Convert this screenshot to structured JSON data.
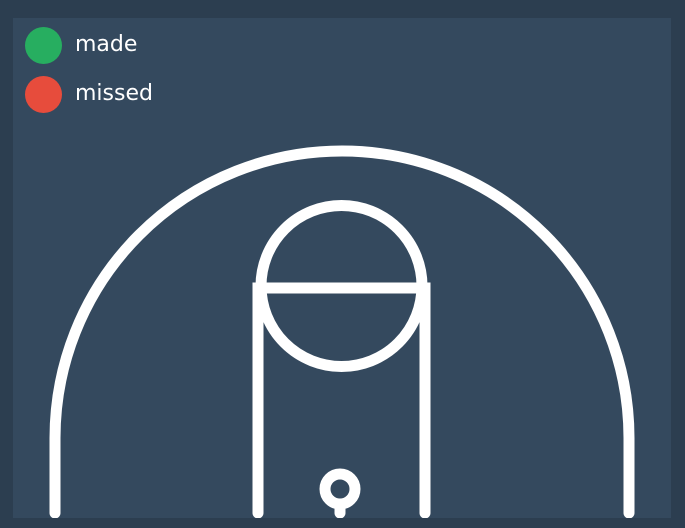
{
  "legend": {
    "items": [
      {
        "label": "made",
        "color": "#27ae60"
      },
      {
        "label": "missed",
        "color": "#e74c3c"
      }
    ]
  },
  "court": {
    "background": "#34495e",
    "line_color": "#ffffff",
    "frame_color": "#2c3e50"
  }
}
